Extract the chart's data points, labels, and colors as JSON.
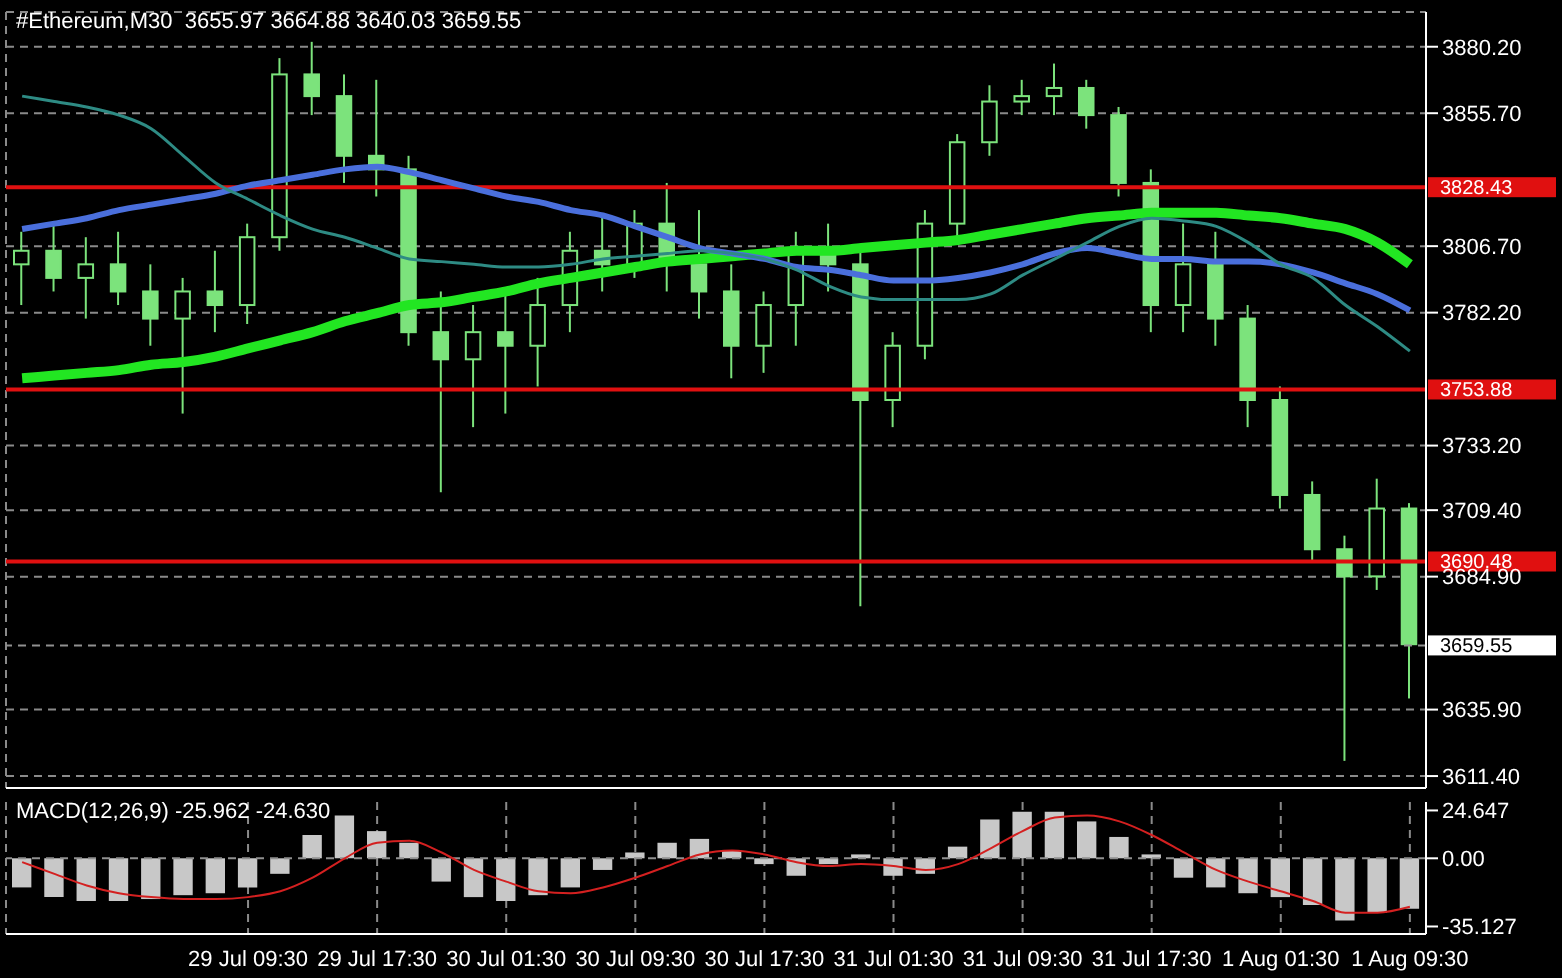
{
  "chart_data": [
    {
      "type": "candlestick",
      "title": "#Ethereum,M30  3655.97 3664.88 3640.03 3659.55",
      "color": "#7ce37c",
      "grid": true,
      "tick_labels": "y",
      "categories": [
        null,
        null,
        null,
        null,
        null,
        null,
        null,
        null,
        null,
        null,
        null,
        null,
        null,
        null,
        null,
        null,
        null,
        null,
        null,
        null,
        null,
        null,
        null,
        null,
        null,
        null,
        null,
        null,
        null,
        null,
        null,
        null,
        null,
        null,
        null,
        null,
        null,
        null,
        null,
        null,
        null,
        null,
        null,
        null
      ],
      "ohlc": [
        [
          3800,
          3812,
          3785,
          3805
        ],
        [
          3805,
          3815,
          3790,
          3795
        ],
        [
          3795,
          3810,
          3780,
          3800
        ],
        [
          3800,
          3812,
          3785,
          3790
        ],
        [
          3790,
          3800,
          3770,
          3780
        ],
        [
          3780,
          3795,
          3745,
          3790
        ],
        [
          3790,
          3805,
          3775,
          3785
        ],
        [
          3785,
          3815,
          3778,
          3810
        ],
        [
          3810,
          3876,
          3805,
          3870
        ],
        [
          3870,
          3882,
          3855,
          3862
        ],
        [
          3862,
          3870,
          3830,
          3840
        ],
        [
          3840,
          3868,
          3825,
          3835
        ],
        [
          3835,
          3840,
          3770,
          3775
        ],
        [
          3775,
          3790,
          3716,
          3765
        ],
        [
          3765,
          3785,
          3740,
          3775
        ],
        [
          3775,
          3790,
          3745,
          3770
        ],
        [
          3770,
          3795,
          3755,
          3785
        ],
        [
          3785,
          3812,
          3775,
          3805
        ],
        [
          3805,
          3818,
          3790,
          3800
        ],
        [
          3800,
          3820,
          3795,
          3815
        ],
        [
          3815,
          3830,
          3790,
          3800
        ],
        [
          3800,
          3820,
          3780,
          3790
        ],
        [
          3790,
          3800,
          3758,
          3770
        ],
        [
          3770,
          3790,
          3760,
          3785
        ],
        [
          3785,
          3812,
          3770,
          3805
        ],
        [
          3805,
          3815,
          3790,
          3800
        ],
        [
          3800,
          3805,
          3674,
          3750
        ],
        [
          3750,
          3775,
          3740,
          3770
        ],
        [
          3770,
          3820,
          3765,
          3815
        ],
        [
          3815,
          3848,
          3810,
          3845
        ],
        [
          3845,
          3866,
          3840,
          3860
        ],
        [
          3860,
          3868,
          3855,
          3862
        ],
        [
          3862,
          3874,
          3855,
          3865
        ],
        [
          3865,
          3868,
          3850,
          3855
        ],
        [
          3855,
          3858,
          3825,
          3830
        ],
        [
          3830,
          3835,
          3775,
          3785
        ],
        [
          3785,
          3815,
          3775,
          3800
        ],
        [
          3800,
          3812,
          3770,
          3780
        ],
        [
          3780,
          3785,
          3740,
          3750
        ],
        [
          3750,
          3755,
          3710,
          3715
        ],
        [
          3715,
          3720,
          3690,
          3695
        ],
        [
          3695,
          3700,
          3617,
          3685
        ],
        [
          3685,
          3721,
          3680,
          3710
        ],
        [
          3710,
          3712,
          3640,
          3660
        ]
      ],
      "series": [
        {
          "type": "line",
          "color": "#22e622",
          "values": [
            3758,
            3759,
            3760,
            3761,
            3763,
            3764,
            3766,
            3769,
            3772,
            3775,
            3779,
            3782,
            3785,
            3786,
            3788,
            3790,
            3793,
            3795,
            3797,
            3799,
            3801,
            3802,
            3803,
            3804,
            3805,
            3805,
            3806,
            3807,
            3808,
            3809,
            3811,
            3813,
            3815,
            3817,
            3818,
            3819,
            3819,
            3819,
            3818,
            3817,
            3815,
            3813,
            3808,
            3800
          ]
        },
        {
          "type": "line",
          "color": "#4a6fdc",
          "values": [
            3813,
            3815,
            3817,
            3820,
            3822,
            3824,
            3826,
            3829,
            3831,
            3833,
            3835,
            3836,
            3834,
            3831,
            3828,
            3825,
            3823,
            3820,
            3818,
            3814,
            3810,
            3806,
            3804,
            3802,
            3799,
            3798,
            3796,
            3794,
            3794,
            3795,
            3797,
            3800,
            3804,
            3806,
            3804,
            3802,
            3802,
            3801,
            3801,
            3800,
            3797,
            3793,
            3789,
            3783
          ]
        },
        {
          "type": "line",
          "color": "#2e8b84",
          "values": [
            3862,
            3860,
            3858,
            3855,
            3850,
            3840,
            3830,
            3824,
            3818,
            3813,
            3810,
            3806,
            3802,
            3801,
            3800,
            3799,
            3799,
            3800,
            3802,
            3803,
            3804,
            3805,
            3804,
            3802,
            3798,
            3792,
            3788,
            3787,
            3787,
            3787,
            3789,
            3796,
            3802,
            3808,
            3814,
            3817,
            3816,
            3814,
            3808,
            3800,
            3795,
            3785,
            3777,
            3768
          ]
        }
      ],
      "ylim": [
        3607,
        3893
      ],
      "yticks": [
        {
          "value": 3880.2,
          "label": "3880.20"
        },
        {
          "value": 3855.7,
          "label": "3855.70"
        },
        {
          "value": 3806.7,
          "label": "3806.70"
        },
        {
          "value": 3782.2,
          "label": "3782.20"
        },
        {
          "value": 3733.2,
          "label": "3733.20"
        },
        {
          "value": 3709.4,
          "label": "3709.40"
        },
        {
          "value": 3684.9,
          "label": "3684.90"
        },
        {
          "value": 3635.9,
          "label": "3635.90"
        },
        {
          "value": 3611.4,
          "label": "3611.40"
        }
      ],
      "ref_lines": [
        {
          "axis": "y",
          "value": 3828.43,
          "label": "3828.43",
          "color": "#e01010",
          "line_style": "solid"
        },
        {
          "axis": "y",
          "value": 3753.88,
          "label": "3753.88",
          "color": "#e01010",
          "line_style": "solid"
        },
        {
          "axis": "y",
          "value": 3690.48,
          "label": "3690.48",
          "color": "#e01010",
          "line_style": "solid"
        },
        {
          "axis": "y",
          "value": 3659.55,
          "label": "3659.55",
          "color": "#909090",
          "line_style": "dashed"
        }
      ]
    },
    {
      "type": "bar",
      "title": "MACD(12,26,9) -25.962 -24.630",
      "grid": "x",
      "categories": [
        null,
        null,
        null,
        null,
        null,
        null,
        null,
        "29 Jul 09:30",
        null,
        null,
        null,
        "29 Jul 17:30",
        null,
        null,
        null,
        "30 Jul 01:30",
        null,
        null,
        null,
        "30 Jul 09:30",
        null,
        null,
        null,
        "30 Jul 17:30",
        null,
        null,
        null,
        "31 Jul 01:30",
        null,
        null,
        null,
        "31 Jul 09:30",
        null,
        null,
        null,
        "31 Jul 17:30",
        null,
        null,
        null,
        "1 Aug 01:30",
        null,
        null,
        null,
        "1 Aug 09:30"
      ],
      "series": [
        {
          "type": "bar",
          "color": "#c8c8c8",
          "values": [
            -15,
            -20,
            -22,
            -22,
            -21,
            -19,
            -18,
            -15,
            -8,
            12,
            22,
            14,
            8,
            -12,
            -20,
            -22,
            -19,
            -15,
            -6,
            3,
            8,
            10,
            4,
            -3,
            -9,
            -3,
            2,
            -9,
            -8,
            6,
            20,
            24,
            24,
            19,
            11,
            2,
            -10,
            -15,
            -18,
            -20,
            -24,
            -32,
            -28,
            -26
          ]
        },
        {
          "type": "line",
          "color": "#d42020",
          "values": [
            -2,
            -8,
            -14,
            -18,
            -20,
            -21,
            -21,
            -20,
            -17,
            -10,
            0,
            8,
            9,
            3,
            -6,
            -12,
            -17,
            -18,
            -15,
            -10,
            -4,
            2,
            4,
            2,
            -2,
            -4,
            -3,
            -4,
            -6,
            -3,
            5,
            14,
            21,
            22,
            19,
            12,
            3,
            -6,
            -12,
            -17,
            -22,
            -28,
            -28,
            -25
          ]
        }
      ],
      "ylim": [
        -39,
        29
      ],
      "yticks": [
        24.647,
        {
          "value": 0,
          "label": "0.00"
        },
        -35.127
      ],
      "ref_lines": [
        {
          "axis": "y",
          "value": 0,
          "color": "#909090",
          "line_style": "dashed"
        }
      ]
    }
  ]
}
